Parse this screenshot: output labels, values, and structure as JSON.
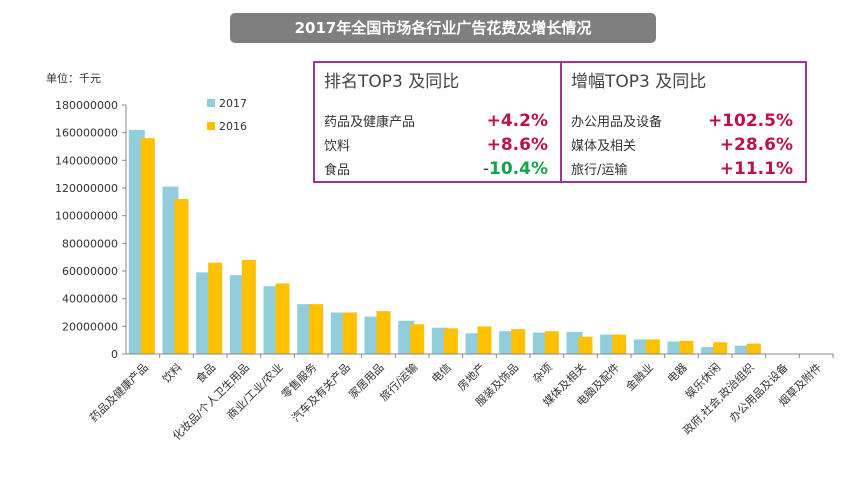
{
  "title": "2017年全国市场各行业广告花费及增长情况",
  "unit_label": "单位：千元",
  "panels": {
    "top3_rank": {
      "title": "排名TOP3 及同比",
      "rows": [
        {
          "name": "药品及健康产品",
          "value": "+4.2%"
        },
        {
          "name": "饮料",
          "value": "+8.6%"
        },
        {
          "name": "食品",
          "sign": "-",
          "value": "10.4%"
        }
      ]
    },
    "top3_growth": {
      "title": "增幅TOP3 及同比",
      "rows": [
        {
          "name": "办公用品及设备",
          "value": "+102.5%"
        },
        {
          "name": "媒体及相关",
          "value": "+28.6%"
        },
        {
          "name": "旅行/运输",
          "value": "+11.1%"
        }
      ]
    }
  },
  "colors": {
    "series_2017": "#92cddc",
    "series_2016": "#ffc000",
    "accent_positive": "#c0104b",
    "accent_negative": "#17a34a",
    "panel_border": "#a3358f",
    "title_bg": "#7f7f7f"
  },
  "chart_data": {
    "type": "bar",
    "title": "2017年全国市场各行业广告花费及增长情况",
    "ylabel": "单位：千元",
    "ylim": [
      0,
      180000000
    ],
    "yticks": [
      "0",
      "20000000",
      "40000000",
      "60000000",
      "80000000",
      "100000000",
      "120000000",
      "140000000",
      "160000000",
      "180000000"
    ],
    "categories": [
      "药品及健康产品",
      "饮料",
      "食品",
      "化妆品/个人卫生用品",
      "商业/工业/农业",
      "零售服务",
      "汽车及有关产品",
      "家居用品",
      "旅行/运输",
      "电信",
      "房地产",
      "服装及饰品",
      "杂项",
      "媒体及相关",
      "电脑及配件",
      "金融业",
      "电器",
      "娱乐休闲",
      "政府,社会,政治组织",
      "办公用品及设备",
      "烟草及附件"
    ],
    "series": [
      {
        "name": "2017",
        "values": [
          162000000,
          121000000,
          59000000,
          57000000,
          49000000,
          36000000,
          30000000,
          27000000,
          24000000,
          19000000,
          15000000,
          16500000,
          15500000,
          16000000,
          14000000,
          10500000,
          9000000,
          5000000,
          6000000,
          0,
          0
        ]
      },
      {
        "name": "2016",
        "values": [
          156000000,
          112000000,
          66000000,
          68000000,
          51000000,
          36000000,
          30000000,
          31000000,
          21500000,
          18500000,
          20000000,
          18000000,
          16500000,
          12500000,
          14000000,
          10500000,
          9500000,
          8500000,
          7500000,
          0,
          0
        ]
      }
    ],
    "legend": "top-left"
  }
}
